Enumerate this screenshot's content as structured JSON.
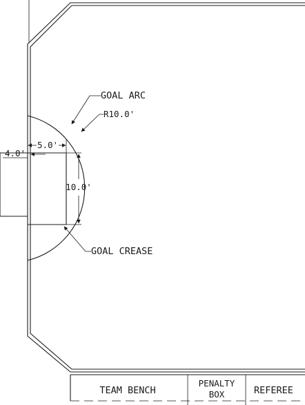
{
  "annotations": {
    "goal_arc": "GOAL ARC",
    "radius": "R10.0'",
    "goal_crease": "GOAL CREASE",
    "dim_width": "5.0'",
    "dim_height": "10.0'",
    "dim_depth": "4.0'"
  },
  "table": {
    "team_bench": "TEAM BENCH",
    "penalty_line1": "PENALTY",
    "penalty_line2": "BOX",
    "referee": "REFEREE"
  }
}
